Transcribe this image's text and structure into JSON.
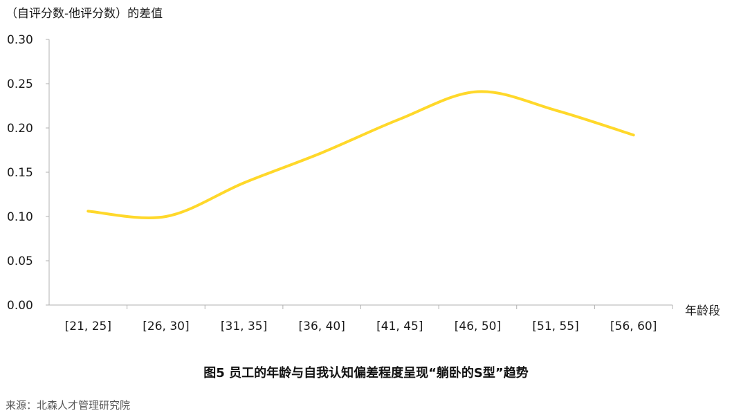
{
  "chart_data": {
    "type": "line",
    "ylabel": "（自评分数-他评分数）的差值",
    "xlabel": "年龄段",
    "categories": [
      "[21, 25]",
      "[26, 30]",
      "[31, 35]",
      "[36, 40]",
      "[41, 45]",
      "[46, 50]",
      "[51, 55]",
      "[56, 60]"
    ],
    "series": [
      {
        "values": [
          0.106,
          0.1,
          0.138,
          0.172,
          0.21,
          0.241,
          0.22,
          0.192
        ]
      }
    ],
    "ylim": [
      0,
      0.3
    ],
    "yticks": [
      "0.00",
      "0.05",
      "0.10",
      "0.15",
      "0.20",
      "0.25",
      "0.30"
    ],
    "grid": false,
    "line_color": "#FFD82A",
    "axis_color": "#b0b0b0"
  },
  "caption": "图5  员工的年龄与自我认知偏差程度呈现“躺卧的S型”趋势",
  "source": "来源：北森人才管理研究院"
}
